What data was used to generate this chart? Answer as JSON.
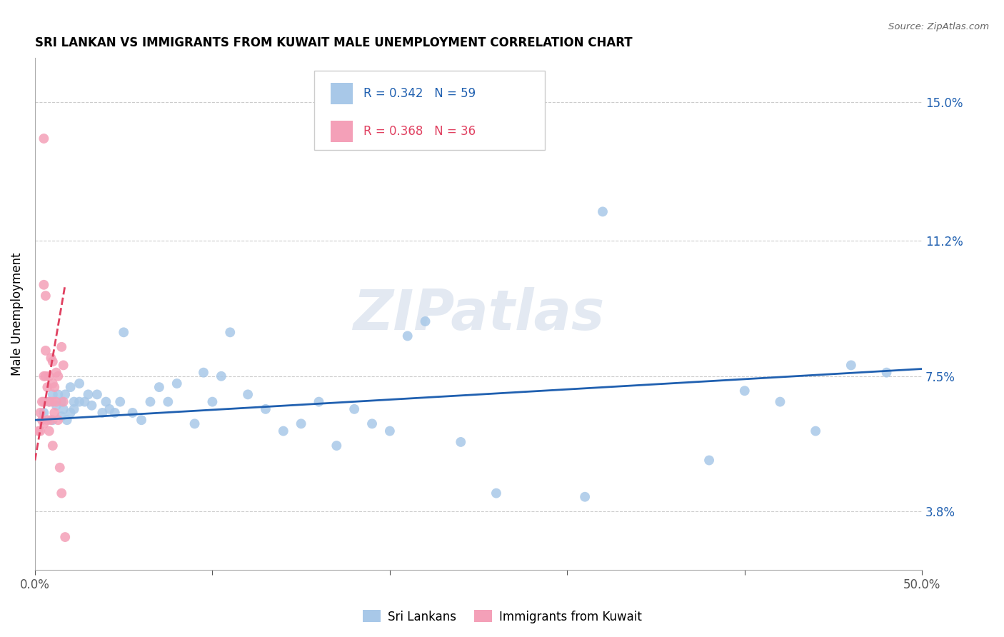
{
  "title": "SRI LANKAN VS IMMIGRANTS FROM KUWAIT MALE UNEMPLOYMENT CORRELATION CHART",
  "source": "Source: ZipAtlas.com",
  "ylabel": "Male Unemployment",
  "xmin": 0.0,
  "xmax": 0.5,
  "ymin": 0.022,
  "ymax": 0.162,
  "yticks": [
    0.038,
    0.075,
    0.112,
    0.15
  ],
  "ytick_labels": [
    "3.8%",
    "7.5%",
    "11.2%",
    "15.0%"
  ],
  "xticks": [
    0.0,
    0.1,
    0.2,
    0.3,
    0.4,
    0.5
  ],
  "xtick_labels": [
    "0.0%",
    "",
    "",
    "",
    "",
    "50.0%"
  ],
  "blue_R": 0.342,
  "blue_N": 59,
  "pink_R": 0.368,
  "pink_N": 36,
  "blue_color": "#a8c8e8",
  "pink_color": "#f4a0b8",
  "blue_line_color": "#2060b0",
  "pink_line_color": "#e04060",
  "watermark": "ZIPatlas",
  "blue_scatter_x": [
    0.005,
    0.008,
    0.01,
    0.01,
    0.012,
    0.013,
    0.015,
    0.015,
    0.016,
    0.017,
    0.018,
    0.02,
    0.02,
    0.022,
    0.022,
    0.025,
    0.025,
    0.028,
    0.03,
    0.032,
    0.035,
    0.038,
    0.04,
    0.042,
    0.045,
    0.048,
    0.05,
    0.055,
    0.06,
    0.065,
    0.07,
    0.075,
    0.08,
    0.09,
    0.095,
    0.1,
    0.105,
    0.11,
    0.12,
    0.13,
    0.14,
    0.15,
    0.16,
    0.17,
    0.18,
    0.19,
    0.2,
    0.21,
    0.22,
    0.24,
    0.26,
    0.31,
    0.32,
    0.38,
    0.4,
    0.42,
    0.44,
    0.46,
    0.48
  ],
  "blue_scatter_y": [
    0.065,
    0.068,
    0.063,
    0.07,
    0.067,
    0.07,
    0.064,
    0.068,
    0.066,
    0.07,
    0.063,
    0.065,
    0.072,
    0.066,
    0.068,
    0.068,
    0.073,
    0.068,
    0.07,
    0.067,
    0.07,
    0.065,
    0.068,
    0.066,
    0.065,
    0.068,
    0.087,
    0.065,
    0.063,
    0.068,
    0.072,
    0.068,
    0.073,
    0.062,
    0.076,
    0.068,
    0.075,
    0.087,
    0.07,
    0.066,
    0.06,
    0.062,
    0.068,
    0.056,
    0.066,
    0.062,
    0.06,
    0.086,
    0.09,
    0.057,
    0.043,
    0.042,
    0.12,
    0.052,
    0.071,
    0.068,
    0.06,
    0.078,
    0.076
  ],
  "pink_scatter_x": [
    0.002,
    0.003,
    0.003,
    0.004,
    0.004,
    0.005,
    0.005,
    0.005,
    0.005,
    0.005,
    0.006,
    0.006,
    0.006,
    0.007,
    0.007,
    0.008,
    0.008,
    0.008,
    0.009,
    0.009,
    0.01,
    0.01,
    0.01,
    0.01,
    0.011,
    0.011,
    0.012,
    0.012,
    0.013,
    0.013,
    0.014,
    0.015,
    0.015,
    0.016,
    0.016,
    0.017
  ],
  "pink_scatter_y": [
    0.06,
    0.065,
    0.06,
    0.068,
    0.063,
    0.14,
    0.1,
    0.075,
    0.068,
    0.062,
    0.097,
    0.082,
    0.075,
    0.072,
    0.063,
    0.075,
    0.068,
    0.06,
    0.08,
    0.063,
    0.079,
    0.073,
    0.068,
    0.056,
    0.072,
    0.065,
    0.076,
    0.068,
    0.075,
    0.063,
    0.05,
    0.043,
    0.083,
    0.078,
    0.068,
    0.031
  ],
  "blue_line_x0": 0.0,
  "blue_line_x1": 0.5,
  "blue_line_y0": 0.063,
  "blue_line_y1": 0.077,
  "pink_line_x0": 0.0,
  "pink_line_x1": 0.017,
  "pink_line_y0": 0.052,
  "pink_line_y1": 0.1
}
